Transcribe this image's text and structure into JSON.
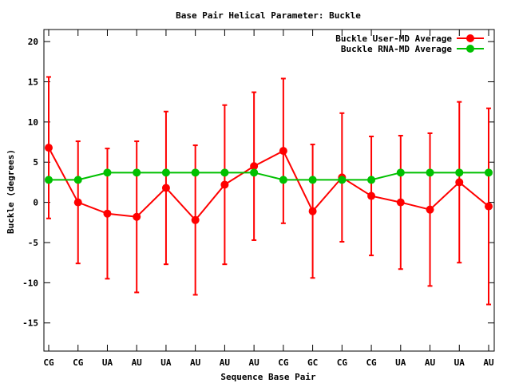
{
  "chart_data": {
    "type": "line",
    "title": "Base Pair Helical Parameter: Buckle",
    "xlabel": "Sequence Base Pair",
    "ylabel": "Buckle (degrees)",
    "categories": [
      "CG",
      "CG",
      "UA",
      "AU",
      "UA",
      "AU",
      "AU",
      "AU",
      "CG",
      "GC",
      "CG",
      "CG",
      "UA",
      "AU",
      "UA",
      "AU"
    ],
    "ylim": [
      -18.5,
      21.5
    ],
    "yticks": [
      -15,
      -10,
      -5,
      0,
      5,
      10,
      15,
      20
    ],
    "grid": false,
    "legend_position": "top-right",
    "series": [
      {
        "name": "Buckle User-MD Average",
        "color": "#ff0000",
        "values": [
          6.8,
          0.0,
          -1.4,
          -1.8,
          1.8,
          -2.2,
          2.2,
          4.5,
          6.4,
          -1.1,
          3.1,
          0.8,
          0.0,
          -0.9,
          2.5,
          -0.5
        ],
        "error": [
          8.8,
          7.6,
          8.1,
          9.4,
          9.5,
          9.3,
          9.9,
          9.2,
          9.0,
          8.3,
          8.0,
          7.4,
          8.3,
          9.5,
          10.0,
          12.2
        ]
      },
      {
        "name": "Buckle RNA-MD Average",
        "color": "#00c000",
        "values": [
          2.8,
          2.8,
          3.7,
          3.7,
          3.7,
          3.7,
          3.7,
          3.7,
          2.8,
          2.8,
          2.8,
          2.8,
          3.7,
          3.7,
          3.7,
          3.7
        ]
      }
    ]
  }
}
